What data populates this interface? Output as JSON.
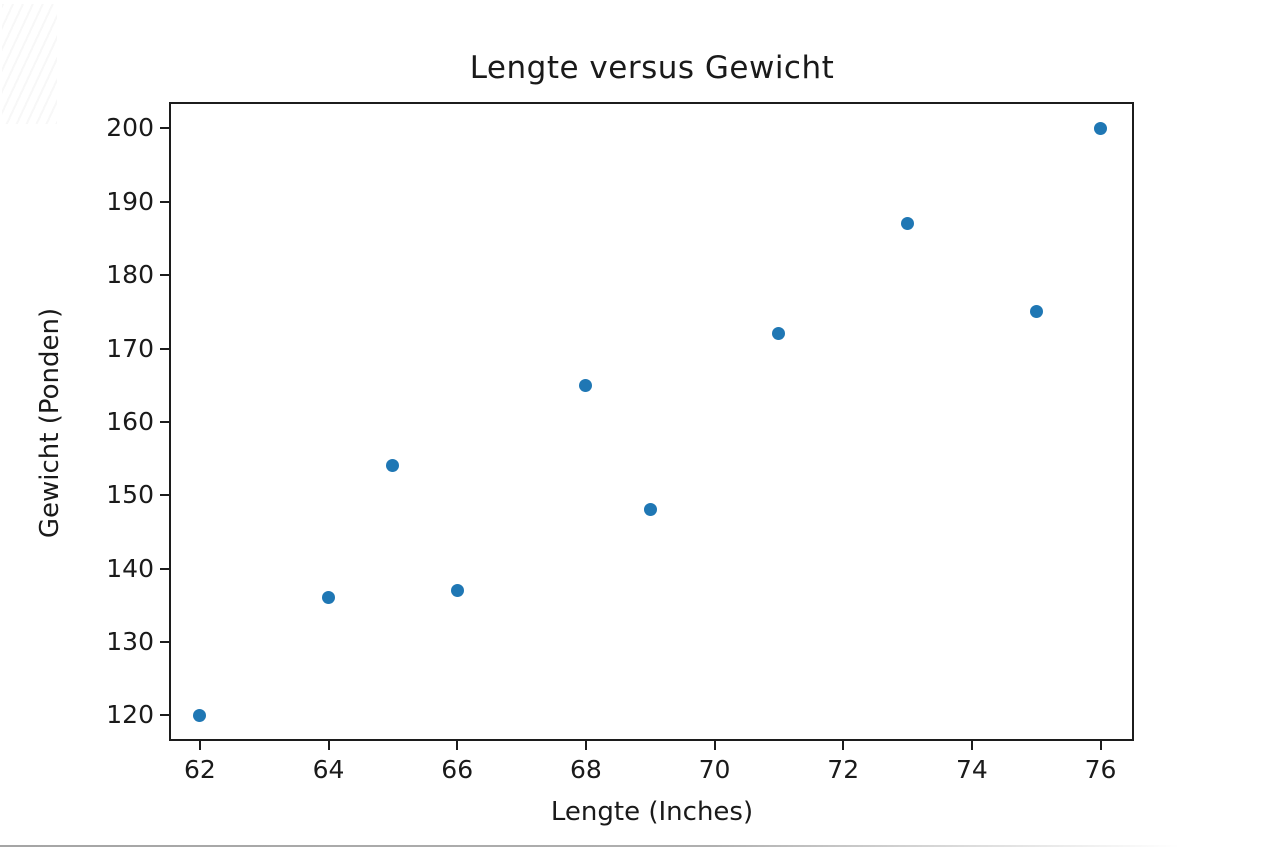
{
  "chart_data": {
    "type": "scatter",
    "title": "Lengte versus Gewicht",
    "xlabel": "Lengte (Inches)",
    "ylabel": "Gewicht (Ponden)",
    "x": [
      62,
      64,
      65,
      66,
      68,
      69,
      71,
      73,
      75,
      76
    ],
    "y": [
      120,
      136,
      154,
      137,
      165,
      148,
      172,
      187,
      175,
      200
    ],
    "xticks": [
      62,
      64,
      66,
      68,
      70,
      72,
      74,
      76
    ],
    "yticks": [
      120,
      130,
      140,
      150,
      160,
      170,
      180,
      190,
      200
    ],
    "xlim": [
      61.52,
      76.52
    ],
    "ylim": [
      116.5,
      203.6
    ],
    "grid": false,
    "legend_position": "none",
    "marker_color": "#1f77b4",
    "text_color": "#1a1a1a",
    "spine_color": "#1c1c1c"
  }
}
